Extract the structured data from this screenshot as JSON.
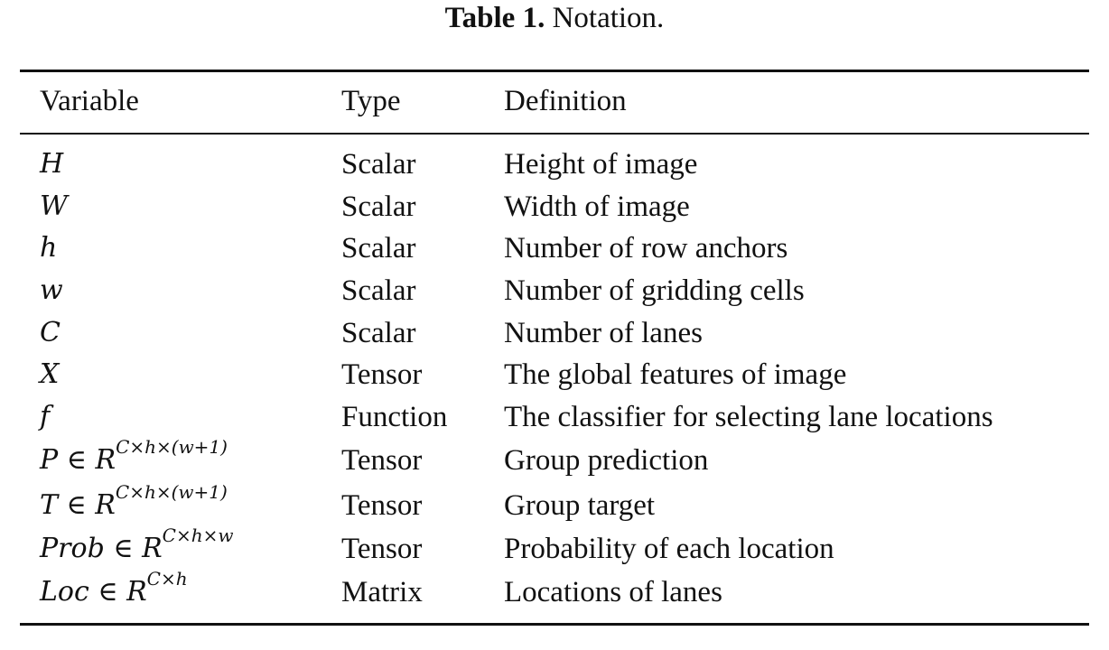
{
  "caption": {
    "label": "Table 1.",
    "text": "Notation."
  },
  "table": {
    "headers": [
      "Variable",
      "Type",
      "Definition"
    ],
    "rows": [
      {
        "variable": "H",
        "exponent": "",
        "type": "Scalar",
        "definition": "Height of image"
      },
      {
        "variable": "W",
        "exponent": "",
        "type": "Scalar",
        "definition": "Width of image"
      },
      {
        "variable": "h",
        "exponent": "",
        "type": "Scalar",
        "definition": "Number of row anchors"
      },
      {
        "variable": "w",
        "exponent": "",
        "type": "Scalar",
        "definition": "Number of gridding cells"
      },
      {
        "variable": "C",
        "exponent": "",
        "type": "Scalar",
        "definition": "Number of lanes"
      },
      {
        "variable": "X",
        "exponent": "",
        "type": "Tensor",
        "definition": "The global features of image"
      },
      {
        "variable": "f",
        "exponent": "",
        "type": "Function",
        "definition": "The classifier for selecting lane locations"
      },
      {
        "variable": "P ∈ R",
        "exponent": "C×h×(w+1)",
        "type": "Tensor",
        "definition": "Group prediction"
      },
      {
        "variable": "T ∈ R",
        "exponent": "C×h×(w+1)",
        "type": "Tensor",
        "definition": "Group target"
      },
      {
        "variable": "Prob ∈ R",
        "exponent": "C×h×w",
        "type": "Tensor",
        "definition": "Probability of each location"
      },
      {
        "variable": "Loc ∈ R",
        "exponent": "C×h",
        "type": "Matrix",
        "definition": "Locations of lanes"
      }
    ]
  }
}
